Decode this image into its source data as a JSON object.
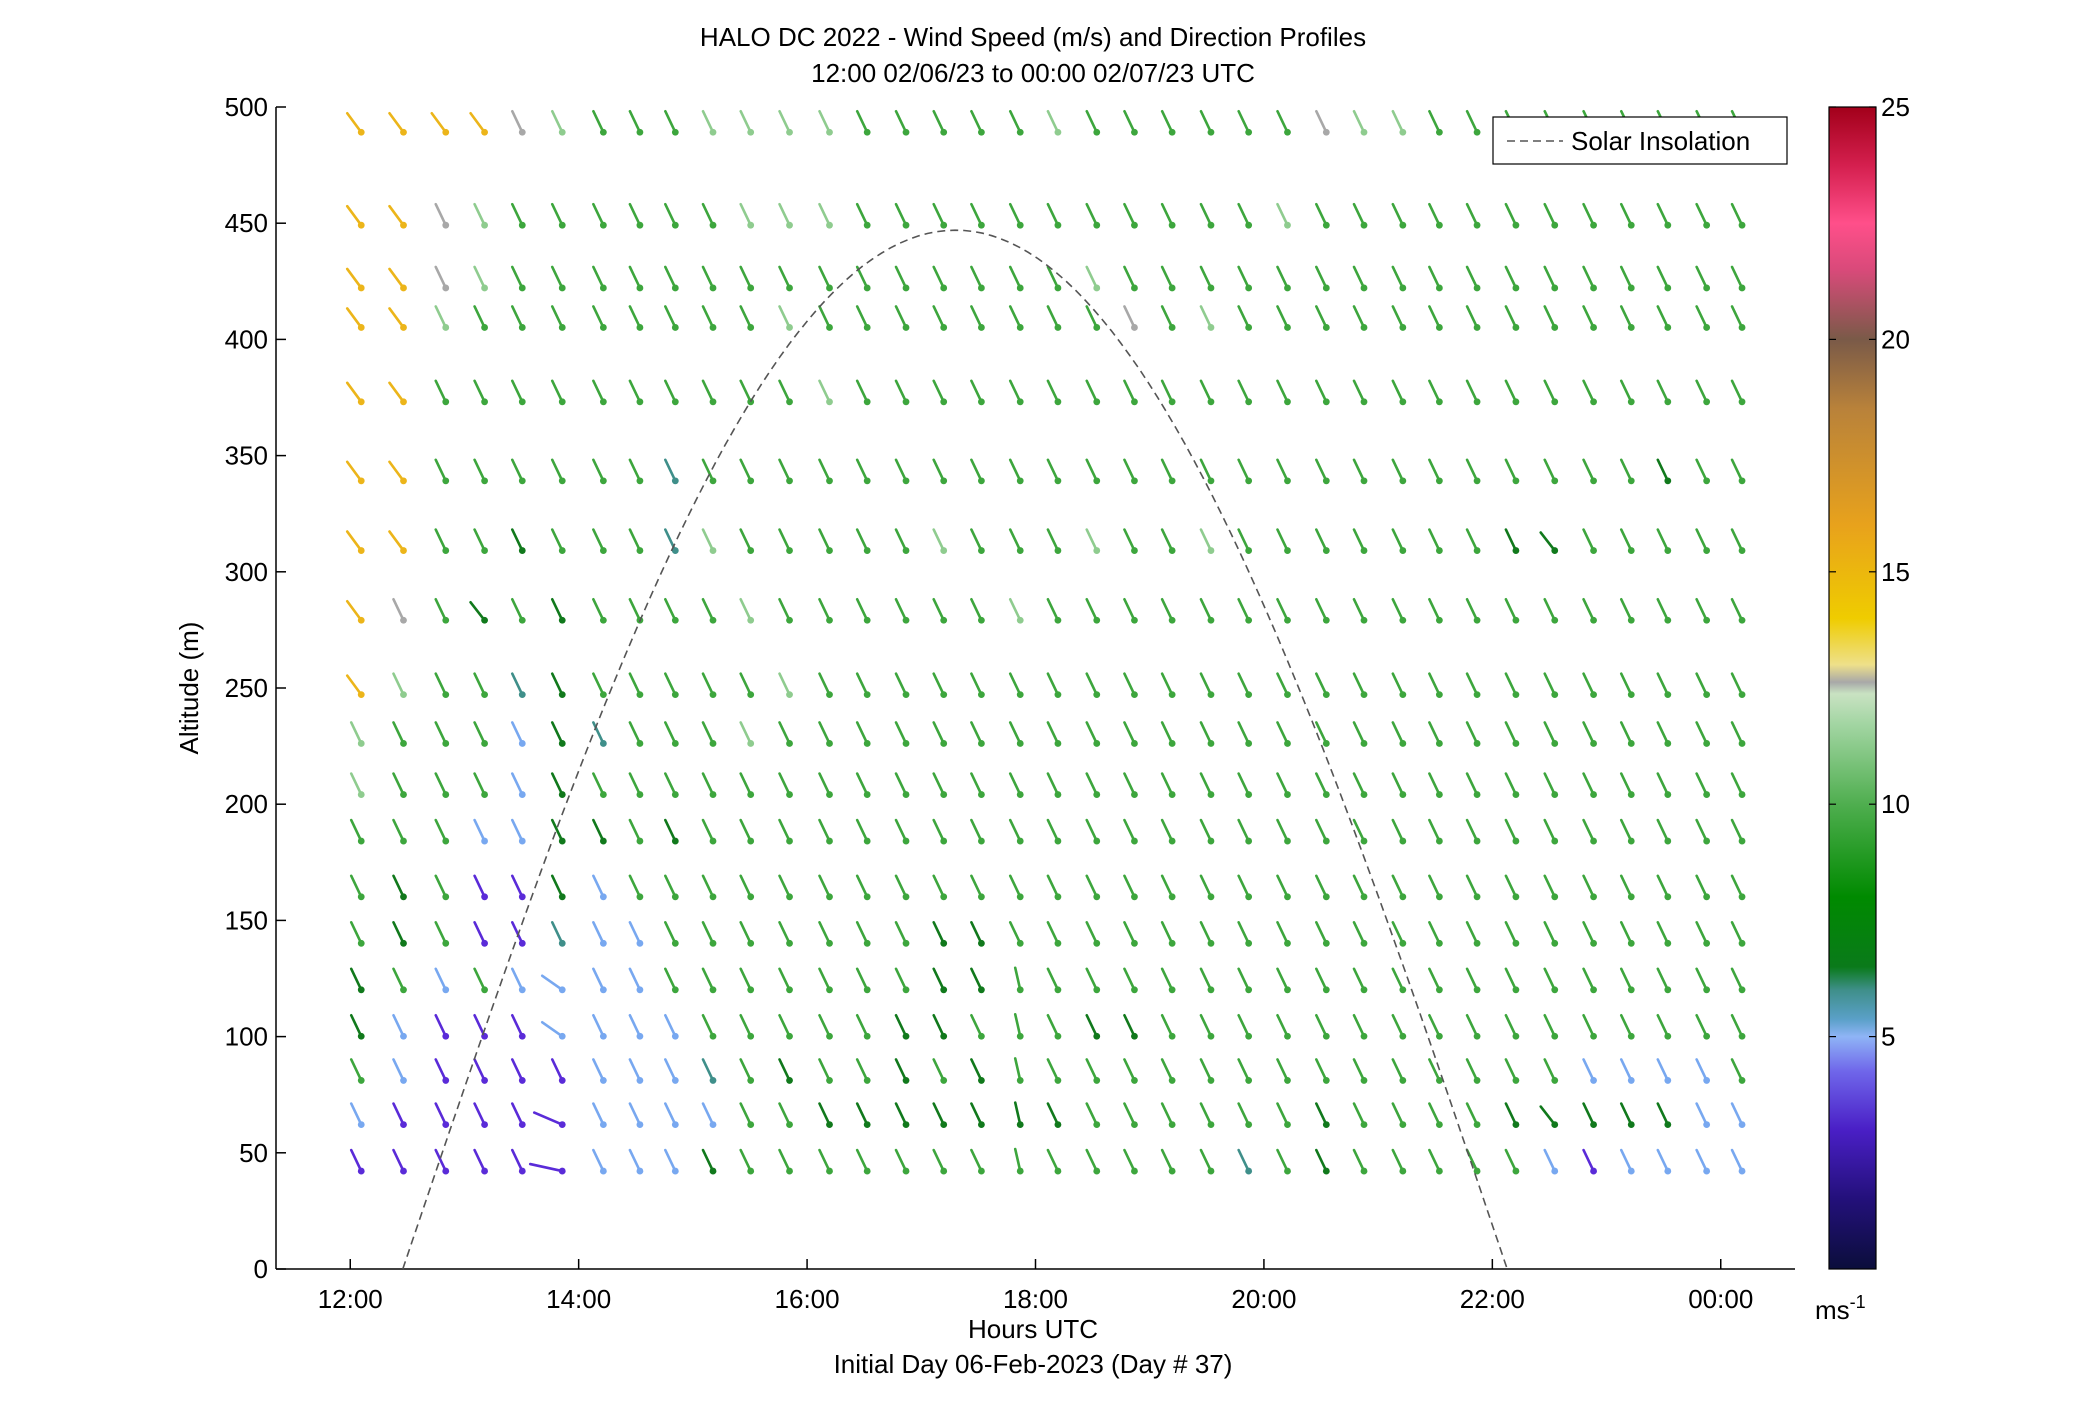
{
  "chart_data": {
    "type": "quiver",
    "title": "HALO DC 2022 - Wind Speed (m/s) and Direction Profiles",
    "subtitle": "12:00 02/06/23 to 00:00 02/07/23  UTC",
    "xlabel": "Hours UTC",
    "xlabel2": "Initial Day 06-Feb-2023 (Day # 37)",
    "ylabel": "Altitude (m)",
    "xlim": [
      11.35,
      24.65
    ],
    "ylim": [
      0,
      500
    ],
    "x_ticks": [
      12,
      14,
      16,
      18,
      20,
      22,
      24
    ],
    "x_tick_labels": [
      "12:00",
      "14:00",
      "16:00",
      "18:00",
      "20:00",
      "22:00",
      "00:00"
    ],
    "y_ticks": [
      0,
      50,
      100,
      150,
      200,
      250,
      300,
      350,
      400,
      450,
      500
    ],
    "y_tick_labels": [
      "0",
      "50",
      "100",
      "150",
      "200",
      "250",
      "300",
      "350",
      "400",
      "450",
      "500"
    ],
    "grid": false,
    "legend": {
      "position": "top-right",
      "entries": [
        "Solar Insolation"
      ]
    },
    "colorbar": {
      "range": [
        0,
        25
      ],
      "ticks": [
        5,
        10,
        15,
        20,
        25
      ],
      "tick_labels": [
        "5",
        "10",
        "15",
        "20",
        "25"
      ],
      "unit_label": "ms",
      "unit_exponent": "-1"
    },
    "sample_times_hours": [
      12.0,
      12.37,
      12.74,
      13.08,
      13.41,
      13.76,
      14.12,
      14.44,
      14.75,
      15.08,
      15.41,
      15.75,
      16.1,
      16.43,
      16.77,
      17.1,
      17.43,
      17.77,
      18.1,
      18.44,
      18.77,
      19.1,
      19.44,
      19.77,
      20.11,
      20.45,
      20.78,
      21.12,
      21.44,
      21.77,
      22.11,
      22.45,
      22.79,
      23.12,
      23.44,
      23.78,
      24.09
    ],
    "altitudes_m": [
      43,
      63,
      82,
      101,
      121,
      141,
      161,
      185,
      205,
      227,
      248,
      280,
      310,
      340,
      374,
      406,
      423,
      450,
      490
    ],
    "barb_color_codes": [
      "PPPPPPLLLDGGGGGGGGGGGGGTGDGGGGGLPLLLLLLL",
      "LPPPPPLLLLGGDDDDDDDGGGGGGDGGGGDDDDDLLLLLL",
      "GLPPPPLLLTGDGGDGDGGGGGGGGGGGGGGGLLLLGGGG",
      "DLPPPLLLLGGGGGDDGGGDDGGGGGGGGGGGGGGGGGGD",
      "DGLGLLLLGGGGGGGDDGGGGGGGGGGGGGGGGGGGGGGG",
      "GDGPPTLLGGGGGGGDDGGGGGGGGGGGGGGGGGGGGGGD",
      "GDGPPDLGGGGGGGGGGGGGGGGGGGGGGGGGGGGGGGGG",
      "GGGLLDDGDGGGGGGGGGGGGGGGGGGGGGGGGGGGGGGG",
      "mGGGLDGGGGGGGGGGGGGGGGGGGGGGGGGGGGGGGGGGG",
      "mGGGLDTGGGmGGGGGGGGGGGGGGGGGGGGGGGGGGGGG",
      "YmGGTDGGGGGmGGGGGGGGGGGGGGGGGGGGGGGGGGGGG",
      "YSGDGDGGGGmGGGGGGmGGGGGGGGGGGGGGGGGGGGGGG",
      "YYGGDGGGTmGGGGGmGGGmGGmGGGGGGGDDGGGGGGG",
      "YYGGGGGGTGGGGGGGGGGGGGGGGGGGGGGGGGDGGGGG",
      "YYGGGGGGGGGGmGGGGGGGGGGGGGGGGGGGGGGGGGGG",
      "YYmGGGGGGGGmGGGGGGGGSGmGGGGGGGGGGGGGGGGG",
      "YYSmGGGGGGGGGGGGGGGmGGGGGGGGGGGGGGGGGGGG",
      "YYSmGGGGGGmmmGGGGGGGGGGGmGGGGGGGGGGGGGGG",
      "YYYYSmGGGmmmmGGGGGmGGGGGGSmmGGGGGGGGGGGG"
    ],
    "barb_color_key": {
      "P": "#5a2bd8",
      "L": "#78a8f0",
      "T": "#3f8f8a",
      "D": "#11791c",
      "G": "#3da63d",
      "m": "#8fcc8f",
      "S": "#a8a8a8",
      "Y": "#ecb51a"
    },
    "solar_insolation_curve": {
      "name": "Solar Insolation",
      "start_hour": 12.46,
      "end_hour": 22.13,
      "peak_hour": 17.3,
      "peak_altitude_m": 447
    }
  }
}
